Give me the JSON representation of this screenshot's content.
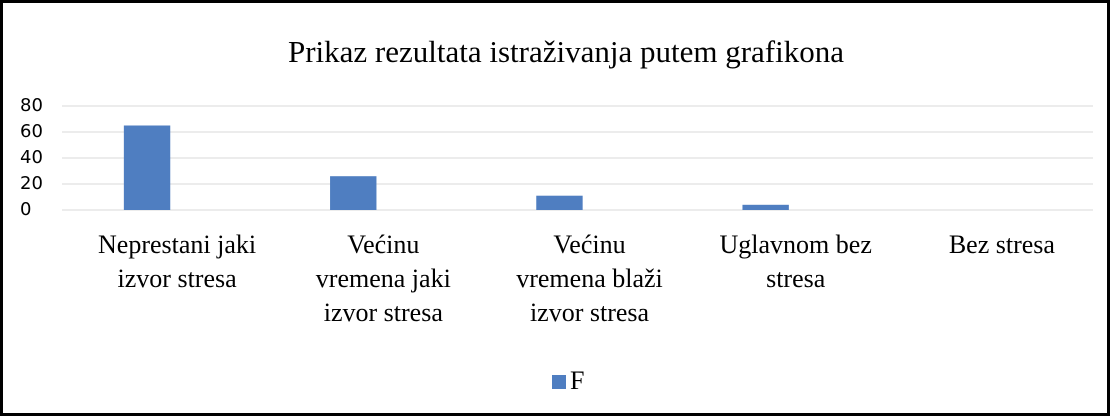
{
  "chart_data": {
    "type": "bar",
    "title": "Prikaz rezultata istraživanja putem grafikona",
    "categories": [
      [
        "Neprestani jaki",
        "izvor stresa"
      ],
      [
        "Većinu",
        "vremena jaki",
        "izvor stresa"
      ],
      [
        "Većinu",
        "vremena blaži",
        "izvor stresa"
      ],
      [
        "Uglavnom bez",
        "stresa"
      ],
      [
        "Bez stresa"
      ]
    ],
    "series": [
      {
        "name": "F",
        "color": "#4f7ec1",
        "values": [
          65,
          26,
          11,
          4,
          0
        ]
      }
    ],
    "ylim": [
      0,
      80
    ],
    "yticks": [
      0,
      20,
      40,
      60,
      80
    ],
    "grid": true,
    "legend": "bottom"
  }
}
